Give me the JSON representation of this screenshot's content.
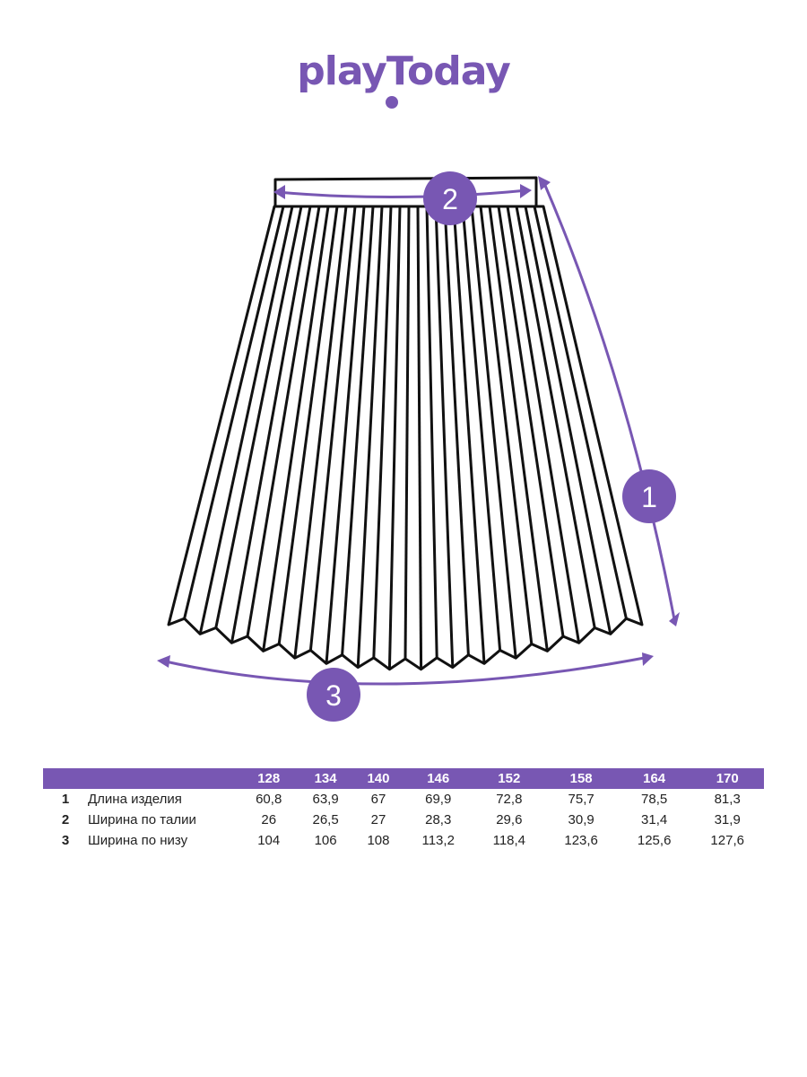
{
  "brand": {
    "logo_text": "playToday",
    "color": "#7857b3"
  },
  "markers": [
    "1",
    "2",
    "3"
  ],
  "table": {
    "sizes": [
      "128",
      "134",
      "140",
      "146",
      "152",
      "158",
      "164",
      "170"
    ],
    "rows": [
      {
        "num": "1",
        "name": "Длина изделия",
        "values": [
          "60,8",
          "63,9",
          "67",
          "69,9",
          "72,8",
          "75,7",
          "78,5",
          "81,3"
        ]
      },
      {
        "num": "2",
        "name": "Ширина по талии",
        "values": [
          "26",
          "26,5",
          "27",
          "28,3",
          "29,6",
          "30,9",
          "31,4",
          "31,9"
        ]
      },
      {
        "num": "3",
        "name": "Ширина по низу",
        "values": [
          "104",
          "106",
          "108",
          "113,2",
          "118,4",
          "123,6",
          "125,6",
          "127,6"
        ]
      }
    ]
  }
}
